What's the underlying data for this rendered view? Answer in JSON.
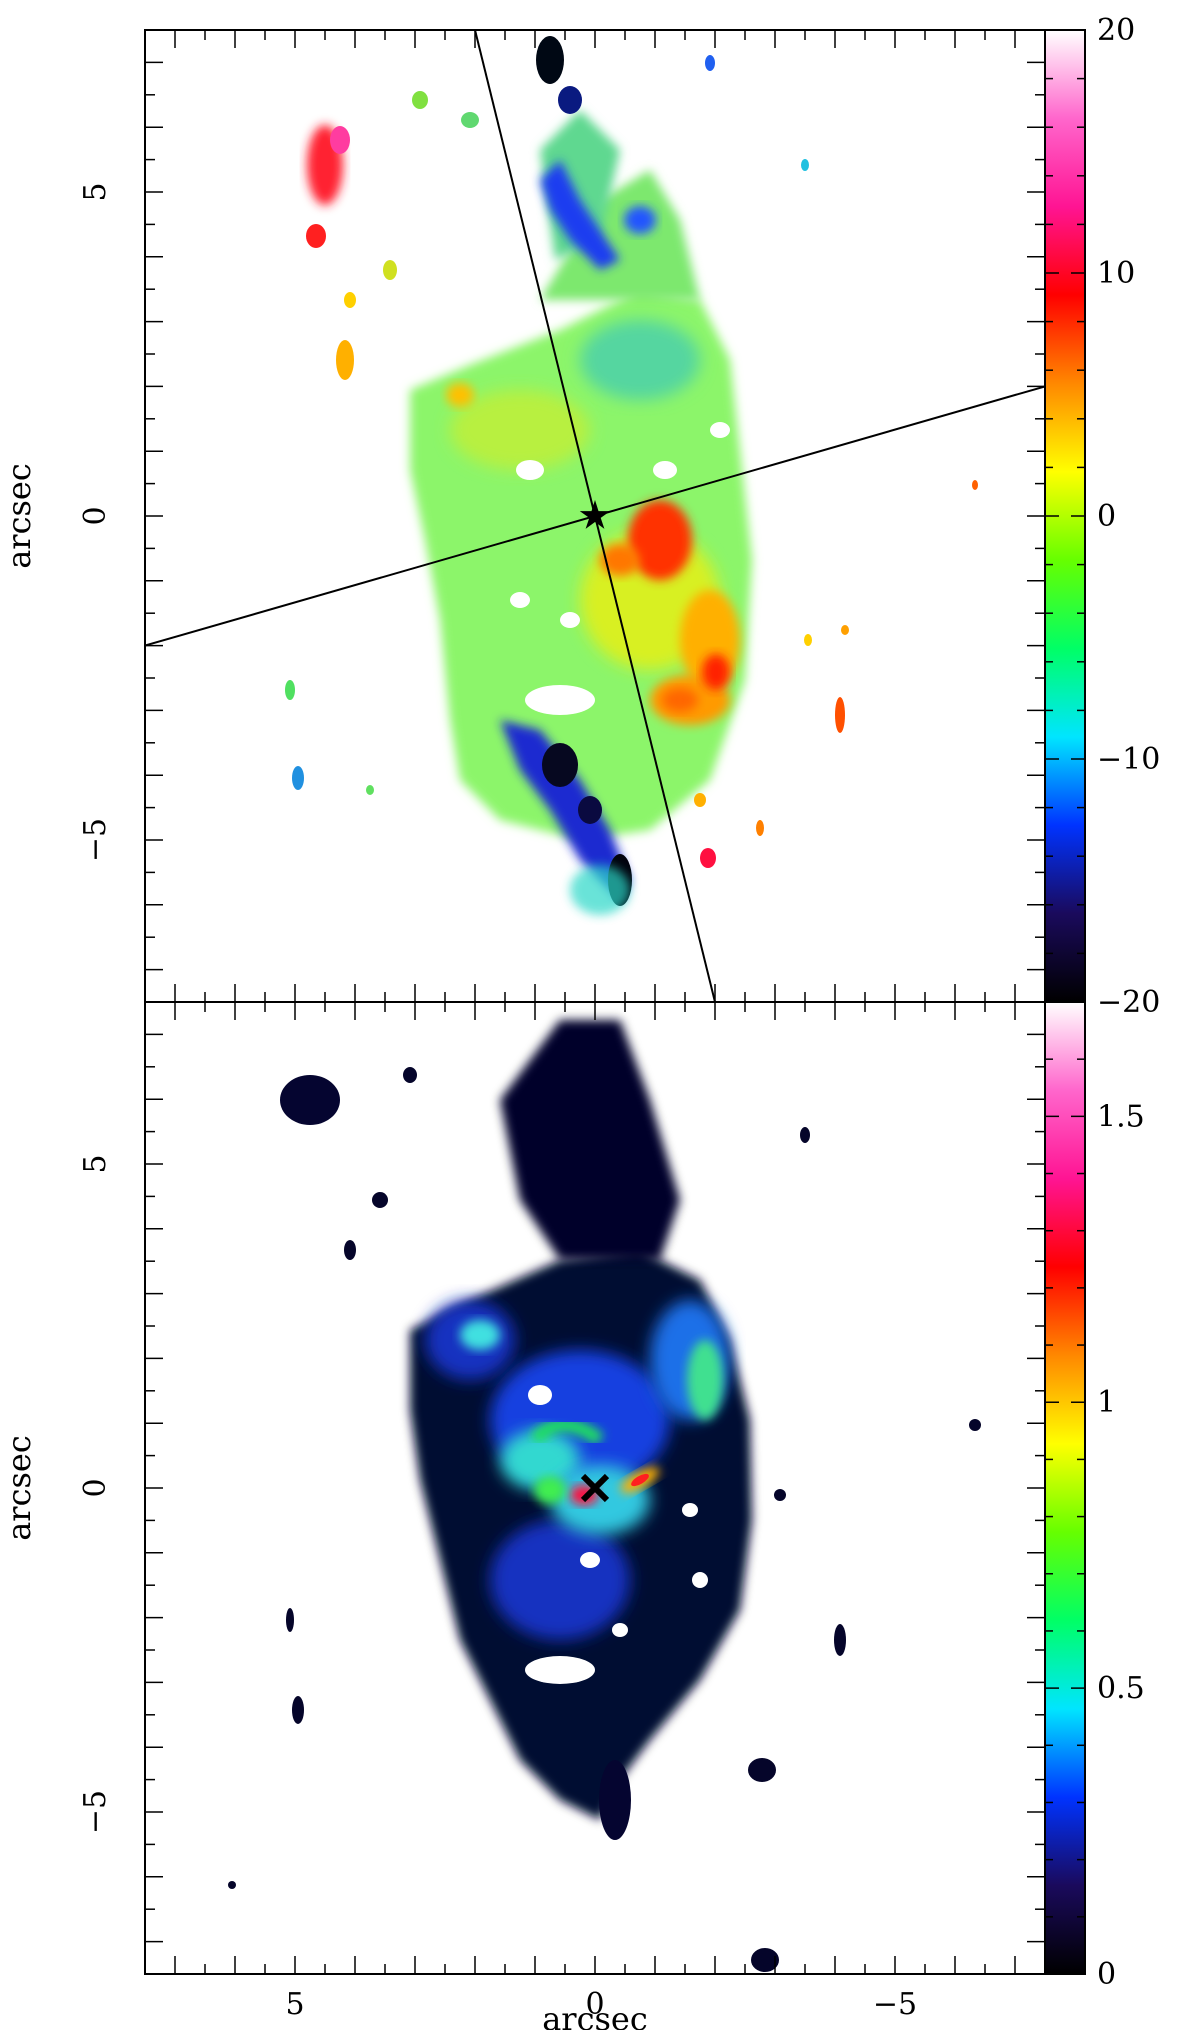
{
  "chart_data": [
    {
      "type": "heatmap",
      "panel": "top",
      "ylabel": "arcsec",
      "xlim": [
        7.5,
        -7.5
      ],
      "ylim": [
        -7.5,
        7.5
      ],
      "y_ticks": [
        "5",
        "0",
        "−5"
      ],
      "colorbar": {
        "range": [
          -20,
          20
        ],
        "tick_values": [
          20,
          10,
          0,
          -10,
          -20
        ],
        "tick_labels": [
          "20",
          "10",
          "0",
          "−10",
          "−20"
        ],
        "colormap": [
          "#000000",
          "#1a0a5c",
          "#0033ff",
          "#00e5ff",
          "#00ff66",
          "#66ff00",
          "#ffff00",
          "#ff8800",
          "#ff0000",
          "#ff1493",
          "#ff66cc",
          "#ffffff"
        ]
      },
      "nucleus_marker": {
        "x": 0,
        "y": 0,
        "symbol": "star"
      },
      "lines": [
        {
          "name": "major-axis",
          "from": [
            2.0,
            7.5
          ],
          "to": [
            -2.0,
            -7.5
          ]
        },
        {
          "name": "minor-axis",
          "from": [
            7.5,
            -2.0
          ],
          "to": [
            -7.5,
            2.0
          ]
        }
      ]
    },
    {
      "type": "heatmap",
      "panel": "bottom",
      "xlabel": "arcsec",
      "ylabel": "arcsec",
      "xlim": [
        7.5,
        -7.5
      ],
      "ylim": [
        -7.5,
        7.5
      ],
      "x_ticks": [
        "5",
        "0",
        "−5"
      ],
      "y_ticks": [
        "5",
        "0",
        "−5"
      ],
      "colorbar": {
        "range": [
          0,
          1.7
        ],
        "tick_values": [
          1.5,
          1,
          0.5,
          0
        ],
        "tick_labels": [
          "1.5",
          "1",
          "0.5",
          "0"
        ],
        "colormap": [
          "#000000",
          "#1a0a5c",
          "#0033ff",
          "#00e5ff",
          "#00ff66",
          "#66ff00",
          "#ffff00",
          "#ff8800",
          "#ff0000",
          "#ff1493",
          "#ff66cc",
          "#ffffff"
        ]
      },
      "nucleus_marker": {
        "x": 0,
        "y": 0,
        "symbol": "cross"
      }
    }
  ]
}
